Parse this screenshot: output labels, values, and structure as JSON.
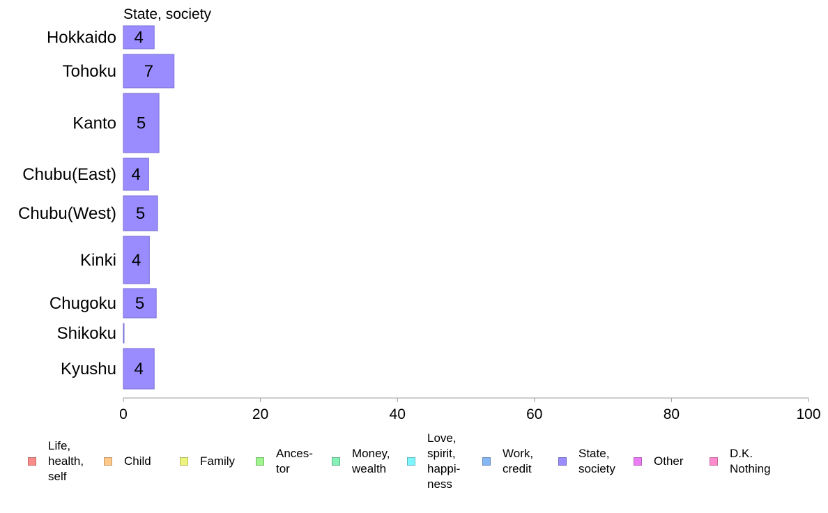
{
  "chart_data": {
    "type": "bar",
    "orientation": "horizontal",
    "title": "State, society",
    "categories": [
      "Hokkaido",
      "Tohoku",
      "Kanto",
      "Chubu(East)",
      "Chubu(West)",
      "Kinki",
      "Chugoku",
      "Shikoku",
      "Kyushu"
    ],
    "values": [
      4.5,
      7.4,
      5.2,
      3.7,
      5.0,
      3.8,
      4.8,
      0.1,
      4.5
    ],
    "labels": [
      "4",
      "7",
      "5",
      "4",
      "5",
      "4",
      "5",
      "",
      "4"
    ],
    "xlim": [
      0,
      100
    ],
    "xticks": [
      "0",
      "20",
      "40",
      "60",
      "80",
      "100"
    ],
    "bar_color": "#9a8cff",
    "bar_edge": "#7a6fd6",
    "grid": false,
    "legend_position": "bottom",
    "legend": [
      {
        "lines": [
          "Life,",
          "health,",
          "self"
        ],
        "color": "#f98b88"
      },
      {
        "lines": [
          "Child"
        ],
        "color": "#ffc98a"
      },
      {
        "lines": [
          "Family"
        ],
        "color": "#eef57e"
      },
      {
        "lines": [
          "Ances-",
          "tor"
        ],
        "color": "#9ff58e"
      },
      {
        "lines": [
          "Money,",
          "wealth"
        ],
        "color": "#86f2b8"
      },
      {
        "lines": [
          "Love,",
          "spirit,",
          "happi-",
          "ness"
        ],
        "color": "#7ff5ff"
      },
      {
        "lines": [
          "Work,",
          "credit"
        ],
        "color": "#86b7f5"
      },
      {
        "lines": [
          "State,",
          "society"
        ],
        "color": "#9a8cff"
      },
      {
        "lines": [
          "Other"
        ],
        "color": "#ea7df5"
      },
      {
        "lines": [
          "D.K.",
          "Nothing"
        ],
        "color": "#ff8ccc"
      }
    ]
  }
}
